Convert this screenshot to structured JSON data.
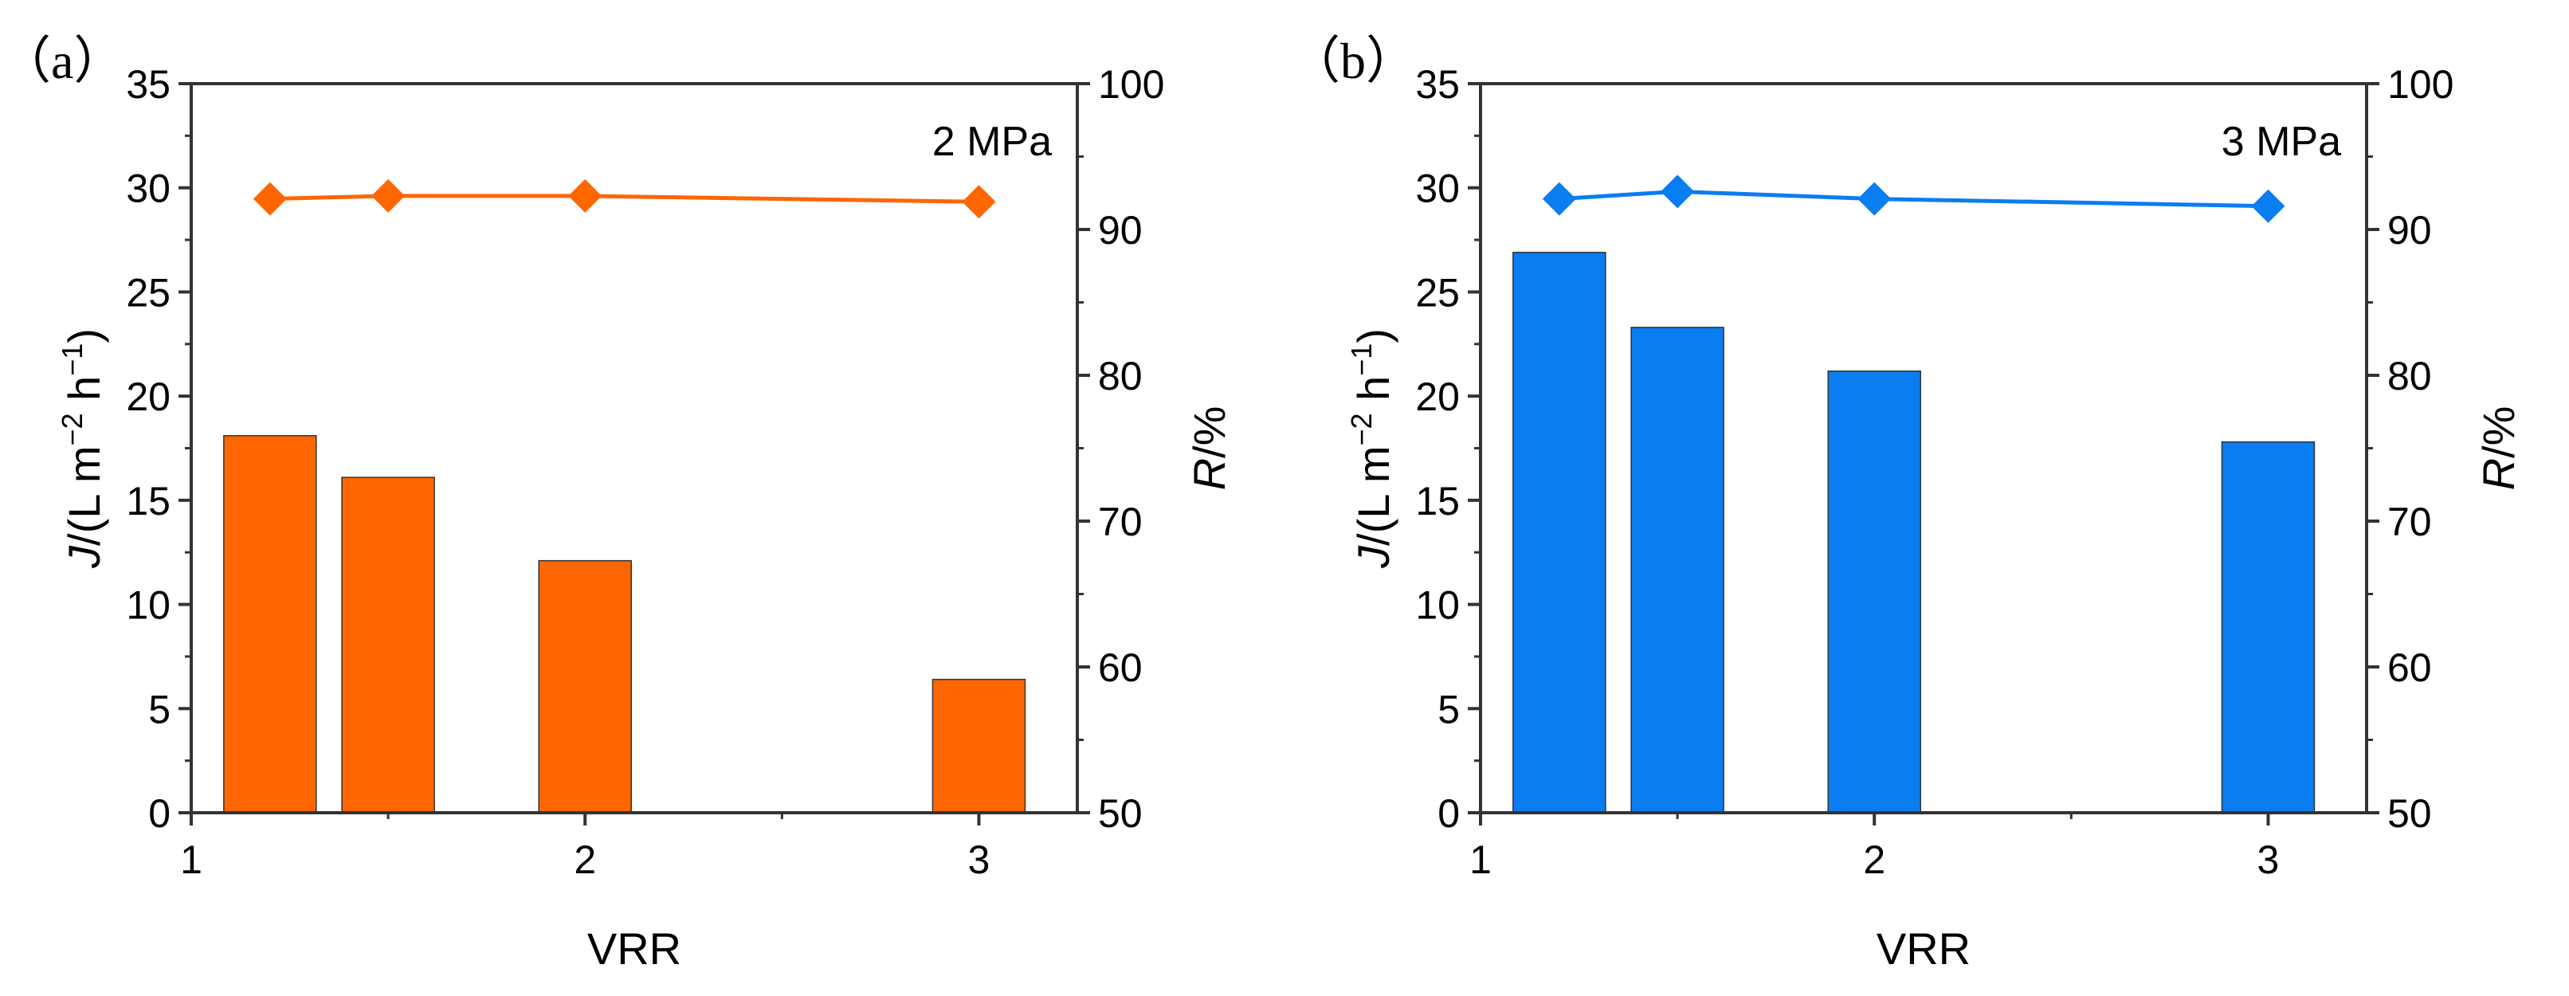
{
  "chart_data": [
    {
      "type": "bar+line",
      "panel_label": "（a）",
      "annotation": "2 MPa",
      "xlabel": "VRR",
      "ylabel_left_italic": "J",
      "ylabel_left_rest": "/(L m",
      "ylabel_left_sup1": "−2",
      "ylabel_left_mid": " h",
      "ylabel_left_sup2": "−1",
      "ylabel_left_end": ")",
      "ylabel_right_italic": "R",
      "ylabel_right_rest": "/%",
      "xlim": [
        1.0,
        3.25
      ],
      "ylim_left": [
        0,
        35
      ],
      "ylim_right": [
        50,
        100
      ],
      "xticks": [
        1,
        2,
        3
      ],
      "yticks_left": [
        0,
        5,
        10,
        15,
        20,
        25,
        30,
        35
      ],
      "yticks_right": [
        50,
        60,
        70,
        80,
        90,
        100
      ],
      "color": "#ff6600",
      "bars": {
        "name": "J",
        "x": [
          1.2,
          1.5,
          2.0,
          3.0
        ],
        "values": [
          18.1,
          16.1,
          12.1,
          6.4
        ]
      },
      "line": {
        "name": "R",
        "x": [
          1.2,
          1.5,
          2.0,
          3.0
        ],
        "values": [
          92.1,
          92.3,
          92.3,
          91.9
        ]
      }
    },
    {
      "type": "bar+line",
      "panel_label": "（b）",
      "annotation": "3 MPa",
      "xlabel": "VRR",
      "ylabel_left_italic": "J",
      "ylabel_left_rest": "/(L m",
      "ylabel_left_sup1": "−2",
      "ylabel_left_mid": " h",
      "ylabel_left_sup2": "−1",
      "ylabel_left_end": ")",
      "ylabel_right_italic": "R",
      "ylabel_right_rest": "/%",
      "xlim": [
        1.0,
        3.25
      ],
      "ylim_left": [
        0,
        35
      ],
      "ylim_right": [
        50,
        100
      ],
      "xticks": [
        1,
        2,
        3
      ],
      "yticks_left": [
        0,
        5,
        10,
        15,
        20,
        25,
        30,
        35
      ],
      "yticks_right": [
        50,
        60,
        70,
        80,
        90,
        100
      ],
      "color": "#0a7df0",
      "bars": {
        "name": "J",
        "x": [
          1.2,
          1.5,
          2.0,
          3.0
        ],
        "values": [
          26.9,
          23.3,
          21.2,
          17.8
        ]
      },
      "line": {
        "name": "R",
        "x": [
          1.2,
          1.5,
          2.0,
          3.0
        ],
        "values": [
          92.1,
          92.6,
          92.1,
          91.6
        ]
      }
    }
  ]
}
